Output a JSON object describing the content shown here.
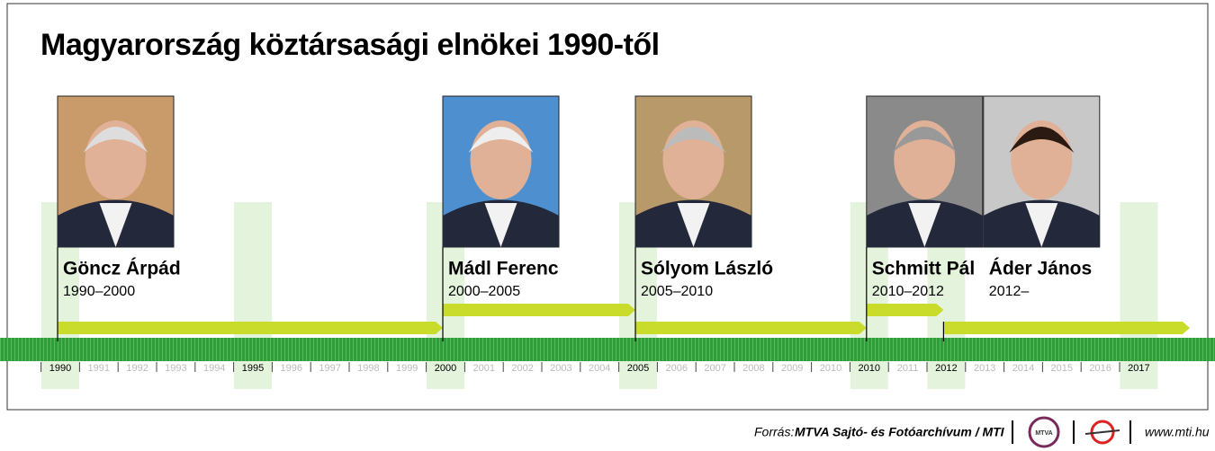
{
  "header": {
    "title": "Magyarország köztársasági elnökei 1990-től"
  },
  "presidents": [
    {
      "name": "Göncz Árpád",
      "term": "1990–2000"
    },
    {
      "name": "Mádl Ferenc",
      "term": "2000–2005"
    },
    {
      "name": "Sólyom László",
      "term": "2005–2010"
    },
    {
      "name": "Schmitt Pál",
      "term": "2010–2012"
    },
    {
      "name": "Áder János",
      "term": "2012–"
    }
  ],
  "years": [
    {
      "year": 1990,
      "highlight": true
    },
    {
      "year": 1991,
      "highlight": false
    },
    {
      "year": 1992,
      "highlight": false
    },
    {
      "year": 1993,
      "highlight": false
    },
    {
      "year": 1994,
      "highlight": false
    },
    {
      "year": 1995,
      "highlight": true
    },
    {
      "year": 1996,
      "highlight": false
    },
    {
      "year": 1997,
      "highlight": false
    },
    {
      "year": 1998,
      "highlight": false
    },
    {
      "year": 1999,
      "highlight": false
    },
    {
      "year": 2000,
      "highlight": true
    },
    {
      "year": 2001,
      "highlight": false
    },
    {
      "year": 2002,
      "highlight": false
    },
    {
      "year": 2003,
      "highlight": false
    },
    {
      "year": 2004,
      "highlight": false
    },
    {
      "year": 2005,
      "highlight": true
    },
    {
      "year": 2006,
      "highlight": false
    },
    {
      "year": 2007,
      "highlight": false
    },
    {
      "year": 2008,
      "highlight": false
    },
    {
      "year": 2009,
      "highlight": false
    },
    {
      "year": 2010,
      "highlight": false
    },
    {
      "year": 2010,
      "highlight": true
    },
    {
      "year": 2011,
      "highlight": false
    },
    {
      "year": 2012,
      "highlight": true
    },
    {
      "year": 2013,
      "highlight": false
    },
    {
      "year": 2014,
      "highlight": false
    },
    {
      "year": 2015,
      "highlight": false
    },
    {
      "year": 2016,
      "highlight": false
    },
    {
      "year": 2017,
      "highlight": true
    }
  ],
  "footer": {
    "source_label": "Forrás:",
    "source": "MTVA Sajtó- és Fotóarchívum / MTI",
    "logo_text": "MTVA",
    "url": "www.mti.hu"
  }
}
